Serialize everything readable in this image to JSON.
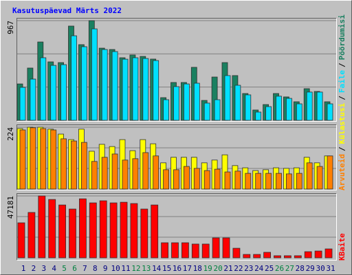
{
  "title": "Kasutuspäevad Märts 2022",
  "legend_separator": "/",
  "chart_data": [
    {
      "type": "bar",
      "series": [
        {
          "name": "Pöördumisi",
          "color": "#1a8060",
          "values": [
            353,
            507,
            760,
            567,
            560,
            914,
            734,
            967,
            700,
            687,
            607,
            634,
            620,
            594,
            220,
            367,
            367,
            514,
            193,
            420,
            560,
            434,
            260,
            100,
            153,
            260,
            227,
            180,
            307,
            280,
            180
          ]
        },
        {
          "name": "Faile",
          "color": "#00e0ff",
          "values": [
            320,
            400,
            607,
            533,
            540,
            820,
            714,
            887,
            687,
            667,
            593,
            607,
            600,
            580,
            200,
            327,
            353,
            360,
            167,
            200,
            434,
            340,
            247,
            80,
            133,
            234,
            213,
            160,
            274,
            274,
            160
          ]
        }
      ],
      "ylim": [
        0,
        967
      ],
      "yticks": [
        967
      ]
    },
    {
      "type": "bar",
      "series": [
        {
          "name": "Külastusi",
          "color": "#ffff00",
          "values": [
            219,
            224,
            224,
            217,
            199,
            179,
            217,
            137,
            162,
            154,
            179,
            139,
            179,
            164,
            95,
            115,
            115,
            115,
            95,
            105,
            124,
            85,
            77,
            67,
            70,
            77,
            75,
            77,
            115,
            95,
            120
          ]
        },
        {
          "name": "Arvuteid",
          "color": "#ff8000",
          "values": [
            214,
            222,
            219,
            214,
            182,
            174,
            169,
            100,
            115,
            127,
            105,
            110,
            132,
            120,
            70,
            70,
            82,
            75,
            67,
            72,
            62,
            65,
            57,
            57,
            57,
            57,
            55,
            57,
            95,
            82,
            120
          ]
        }
      ],
      "ylim": [
        0,
        224
      ],
      "yticks": [
        224
      ]
    },
    {
      "type": "bar",
      "categories": [
        "1",
        "2",
        "3",
        "4",
        "5",
        "6",
        "7",
        "8",
        "9",
        "10",
        "11",
        "12",
        "13",
        "14",
        "15",
        "16",
        "17",
        "18",
        "19",
        "20",
        "21",
        "22",
        "23",
        "24",
        "25",
        "26",
        "27",
        "28",
        "29",
        "30",
        "31"
      ],
      "category_colors": [
        "#000080",
        "#000080",
        "#000080",
        "#000080",
        "#008040",
        "#008040",
        "#000080",
        "#000080",
        "#000080",
        "#000080",
        "#000080",
        "#008040",
        "#008040",
        "#000080",
        "#000080",
        "#000080",
        "#000080",
        "#000080",
        "#008040",
        "#008040",
        "#000080",
        "#000080",
        "#000080",
        "#000080",
        "#000080",
        "#008040",
        "#008040",
        "#000080",
        "#000080",
        "#000080",
        "#000080"
      ],
      "series": [
        {
          "name": "KBaite",
          "color": "#ff0000",
          "values": [
            26700,
            34600,
            47181,
            44500,
            40300,
            37200,
            45000,
            41900,
            43500,
            41900,
            42400,
            41400,
            37200,
            40300,
            11500,
            11500,
            11500,
            10500,
            10500,
            15200,
            15200,
            7300,
            2600,
            2600,
            4200,
            1600,
            1600,
            1600,
            4700,
            5200,
            6800
          ]
        }
      ],
      "ylim": [
        0,
        47181
      ],
      "yticks": [
        47181
      ]
    }
  ]
}
